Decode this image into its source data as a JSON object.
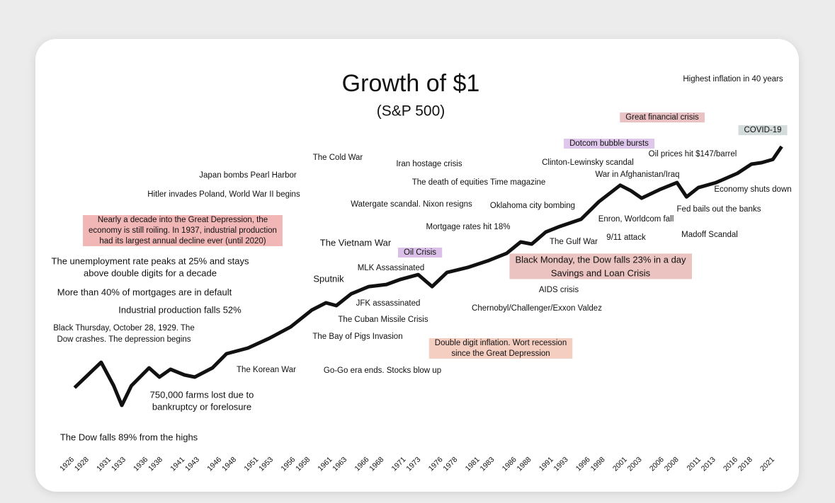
{
  "chart_data": {
    "type": "line",
    "title": "Growth of $1",
    "subtitle": "(S&P 500)",
    "log_scale": true,
    "color": "#111111",
    "x": [
      1926.8,
      1930.4,
      1932.1,
      1933.2,
      1934.5,
      1936.9,
      1938.3,
      1939.8,
      1941.7,
      1943.1,
      1945.5,
      1947.4,
      1950.3,
      1953.2,
      1956.1,
      1959,
      1960.9,
      1962.3,
      1964.3,
      1966.7,
      1969.1,
      1971,
      1973.4,
      1975.3,
      1977.3,
      1980.1,
      1983,
      1985.4,
      1987.3,
      1988.8,
      1990.7,
      1992.6,
      1995.5,
      1997.9,
      2000.8,
      2002.3,
      2003.7,
      2006.1,
      2008.5,
      2009.8,
      2011.4,
      2013.8,
      2016.7,
      2018.6,
      2020,
      2021.5,
      2022.7
    ],
    "values": [
      1.0,
      2.64,
      1.08,
      0.51,
      1.08,
      2.13,
      1.5,
      2.02,
      1.63,
      1.5,
      2.13,
      3.66,
      4.54,
      6.6,
      10.2,
      19.5,
      25.6,
      23,
      36,
      47.5,
      51.5,
      62.6,
      75,
      47.5,
      81.6,
      98.6,
      129,
      169,
      261,
      241,
      381,
      472,
      622,
      1210,
      2280,
      1830,
      1390,
      1920,
      2520,
      1460,
      2080,
      2520,
      3590,
      5100,
      5400,
      6100,
      10000
    ],
    "xlim": [
      1925,
      2023
    ],
    "ylim": [
      0.5,
      20000
    ],
    "xticks": [
      1926,
      1928,
      1931,
      1933,
      1936,
      1938,
      1941,
      1943,
      1946,
      1948,
      1951,
      1953,
      1956,
      1958,
      1961,
      1963,
      1966,
      1968,
      1971,
      1973,
      1976,
      1978,
      1981,
      1983,
      1986,
      1988,
      1991,
      1993,
      1996,
      1998,
      2001,
      2003,
      2006,
      2008,
      2011,
      2013,
      2016,
      2018,
      2021
    ],
    "annotations": [
      {
        "lines": [
          "Highest inflation in 40 years"
        ]
      },
      {
        "lines": [
          "Great financial crisis"
        ],
        "highlight": "#e6b7ba"
      },
      {
        "lines": [
          "COVID-19"
        ],
        "highlight": "#cdd5d5"
      },
      {
        "lines": [
          "Dotcom bubble bursts"
        ],
        "highlight": "#d9bde9"
      },
      {
        "lines": [
          "Oil prices hit $147/barrel"
        ]
      },
      {
        "lines": [
          "Clinton-Lewinsky scandal"
        ]
      },
      {
        "lines": [
          "War in Afghanistan/Iraq"
        ]
      },
      {
        "lines": [
          "Economy shuts down"
        ]
      },
      {
        "lines": [
          "Fed bails out the banks"
        ]
      },
      {
        "lines": [
          "Enron, Worldcom fall"
        ]
      },
      {
        "lines": [
          "Madoff Scandal"
        ]
      },
      {
        "lines": [
          "9/11 attack"
        ]
      },
      {
        "lines": [
          "The Gulf War"
        ]
      },
      {
        "lines": [
          "Black Monday, the Dow falls 23% in a day",
          "Savings and Loan Crisis"
        ],
        "highlight": "#e8b9b5"
      },
      {
        "lines": [
          "AIDS crisis"
        ]
      },
      {
        "lines": [
          "Chernobyl/Challenger/Exxon Valdez"
        ]
      },
      {
        "lines": [
          "Double digit inflation. Wort recession",
          "since the Great Depression"
        ],
        "highlight": "#f2c6b6"
      },
      {
        "lines": [
          "Go-Go era ends. Stocks blow up"
        ]
      },
      {
        "lines": [
          "The Bay of Pigs Invasion"
        ]
      },
      {
        "lines": [
          "The Cuban Missile Crisis"
        ]
      },
      {
        "lines": [
          "JFK assassinated"
        ]
      },
      {
        "lines": [
          "MLK Assassinated"
        ]
      },
      {
        "lines": [
          "Sputnik"
        ]
      },
      {
        "lines": [
          "Oil Crisis"
        ],
        "highlight": "#d4b5e4"
      },
      {
        "lines": [
          "The Vietnam War"
        ]
      },
      {
        "lines": [
          "Mortgage rates hit 18%"
        ]
      },
      {
        "lines": [
          "Watergate scandal. Nixon resigns"
        ]
      },
      {
        "lines": [
          "Oklahoma city bombing"
        ]
      },
      {
        "lines": [
          "The death of equities Time magazine"
        ]
      },
      {
        "lines": [
          "Iran hostage crisis"
        ]
      },
      {
        "lines": [
          "The Cold War"
        ]
      },
      {
        "lines": [
          "Japan bombs Pearl Harbor"
        ]
      },
      {
        "lines": [
          "Hitler invades Poland, World War II begins"
        ]
      },
      {
        "lines": [
          "Nearly a decade into the Great Depression, the",
          "economy is still roiling. In 1937, industrial production",
          "had its largest annual decline ever (until 2020)"
        ],
        "highlight": "#eeaaaa"
      },
      {
        "lines": [
          "The unemployment rate peaks at 25% and stays",
          "above double digits for a decade"
        ]
      },
      {
        "lines": [
          "More than 40% of mortgages are in default"
        ]
      },
      {
        "lines": [
          "Industrial production falls 52%"
        ]
      },
      {
        "lines": [
          "Black Thursday, October 28, 1929. The",
          "Dow crashes. The depression begins"
        ]
      },
      {
        "lines": [
          "The Korean War"
        ]
      },
      {
        "lines": [
          "750,000 farms lost due to",
          "bankruptcy or forelosure"
        ]
      },
      {
        "lines": [
          "The Dow falls 89% from the highs"
        ]
      }
    ]
  }
}
